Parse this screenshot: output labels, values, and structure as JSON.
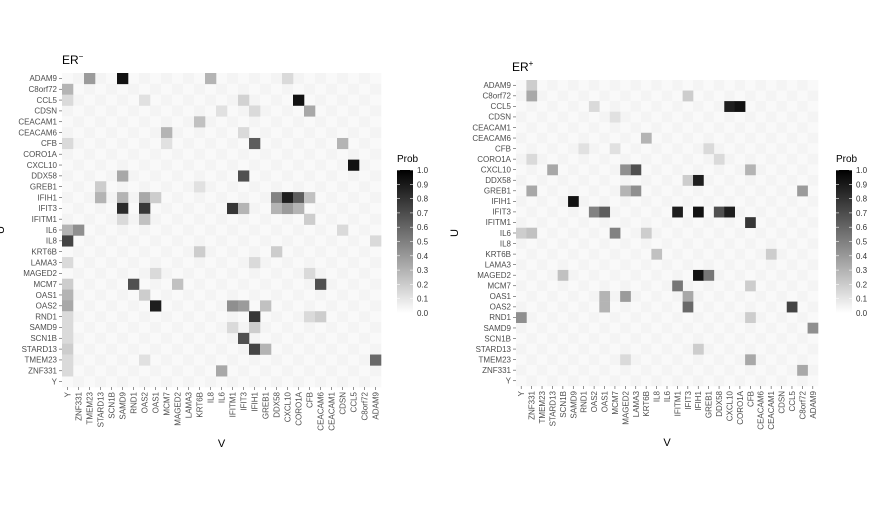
{
  "chart_data": [
    {
      "type": "heatmap",
      "title": "ER−",
      "title_base": "ER",
      "title_sup": "−",
      "xlabel": "V",
      "ylabel": "U",
      "x_categories": [
        "Y",
        "ZNF331",
        "TMEM23",
        "STARD13",
        "SCN1B",
        "SAMD9",
        "RND1",
        "OAS2",
        "OAS1",
        "MCM7",
        "MAGED2",
        "LAMA3",
        "KRT6B",
        "IL8",
        "IL6",
        "IFITM1",
        "IFIT3",
        "IFIH1",
        "GREB1",
        "DDX58",
        "CXCL10",
        "CORO1A",
        "CFB",
        "CEACAM6",
        "CEACAM1",
        "CDSN",
        "CCL5",
        "C8orf72",
        "ADAM9"
      ],
      "y_categories": [
        "ADAM9",
        "C8orf72",
        "CCL5",
        "CDSN",
        "CEACAM1",
        "CEACAM6",
        "CFB",
        "CORO1A",
        "CXCL10",
        "DDX58",
        "GREB1",
        "IFIH1",
        "IFIT3",
        "IFITM1",
        "IL6",
        "IL8",
        "KRT6B",
        "LAMA3",
        "MAGED2",
        "MCM7",
        "OAS1",
        "OAS2",
        "RND1",
        "SAMD9",
        "SCN1B",
        "STARD13",
        "TMEM23",
        "ZNF331",
        "Y"
      ],
      "cells": [
        [
          "ADAM9",
          "TMEM23",
          0.4
        ],
        [
          "ADAM9",
          "SAMD9",
          0.95
        ],
        [
          "ADAM9",
          "IL8",
          0.3
        ],
        [
          "ADAM9",
          "CXCL10",
          0.15
        ],
        [
          "C8orf72",
          "Y",
          0.3
        ],
        [
          "CCL5",
          "Y",
          0.15
        ],
        [
          "CCL5",
          "OAS2",
          0.12
        ],
        [
          "CCL5",
          "IFIT3",
          0.18
        ],
        [
          "CCL5",
          "CORO1A",
          0.95
        ],
        [
          "CDSN",
          "IL6",
          0.12
        ],
        [
          "CDSN",
          "IFIH1",
          0.15
        ],
        [
          "CDSN",
          "CFB",
          0.35
        ],
        [
          "CEACAM1",
          "KRT6B",
          0.25
        ],
        [
          "CEACAM6",
          "MCM7",
          0.3
        ],
        [
          "CEACAM6",
          "IFIT3",
          0.15
        ],
        [
          "CFB",
          "Y",
          0.15
        ],
        [
          "CFB",
          "MCM7",
          0.12
        ],
        [
          "CFB",
          "IFIH1",
          0.65
        ],
        [
          "CFB",
          "CDSN",
          0.3
        ],
        [
          "CXCL10",
          "CCL5",
          0.95
        ],
        [
          "DDX58",
          "SAMD9",
          0.35
        ],
        [
          "DDX58",
          "IFIT3",
          0.7
        ],
        [
          "GREB1",
          "STARD13",
          0.2
        ],
        [
          "GREB1",
          "KRT6B",
          0.12
        ],
        [
          "IFIH1",
          "STARD13",
          0.3
        ],
        [
          "IFIH1",
          "SAMD9",
          0.3
        ],
        [
          "IFIH1",
          "OAS2",
          0.35
        ],
        [
          "IFIH1",
          "OAS1",
          0.2
        ],
        [
          "IFIH1",
          "DDX58",
          0.5
        ],
        [
          "IFIH1",
          "CXCL10",
          0.9
        ],
        [
          "IFIH1",
          "CORO1A",
          0.65
        ],
        [
          "IFIH1",
          "CFB",
          0.25
        ],
        [
          "IFIT3",
          "SAMD9",
          0.85
        ],
        [
          "IFIT3",
          "OAS2",
          0.8
        ],
        [
          "IFIT3",
          "IFITM1",
          0.8
        ],
        [
          "IFIT3",
          "IFIT3",
          0.3
        ],
        [
          "IFIT3",
          "DDX58",
          0.3
        ],
        [
          "IFIT3",
          "CXCL10",
          0.4
        ],
        [
          "IFIT3",
          "CORO1A",
          0.3
        ],
        [
          "IFITM1",
          "SAMD9",
          0.15
        ],
        [
          "IFITM1",
          "OAS2",
          0.25
        ],
        [
          "IFITM1",
          "CFB",
          0.2
        ],
        [
          "IL6",
          "Y",
          0.3
        ],
        [
          "IL6",
          "ZNF331",
          0.45
        ],
        [
          "IL6",
          "CDSN",
          0.15
        ],
        [
          "IL8",
          "Y",
          0.75
        ],
        [
          "IL8",
          "ADAM9",
          0.15
        ],
        [
          "KRT6B",
          "KRT6B",
          0.2
        ],
        [
          "KRT6B",
          "DDX58",
          0.2
        ],
        [
          "LAMA3",
          "Y",
          0.15
        ],
        [
          "LAMA3",
          "IFIH1",
          0.15
        ],
        [
          "MAGED2",
          "OAS1",
          0.15
        ],
        [
          "MAGED2",
          "CFB",
          0.15
        ],
        [
          "MCM7",
          "Y",
          0.2
        ],
        [
          "MCM7",
          "RND1",
          0.7
        ],
        [
          "MCM7",
          "MAGED2",
          0.25
        ],
        [
          "MCM7",
          "CEACAM6",
          0.7
        ],
        [
          "OAS1",
          "Y",
          0.3
        ],
        [
          "OAS1",
          "OAS2",
          0.2
        ],
        [
          "OAS2",
          "Y",
          0.35
        ],
        [
          "OAS2",
          "OAS1",
          0.9
        ],
        [
          "OAS2",
          "IFITM1",
          0.45
        ],
        [
          "OAS2",
          "IFIT3",
          0.4
        ],
        [
          "OAS2",
          "GREB1",
          0.25
        ],
        [
          "RND1",
          "Y",
          0.15
        ],
        [
          "RND1",
          "IFIH1",
          0.8
        ],
        [
          "RND1",
          "CFB",
          0.15
        ],
        [
          "RND1",
          "CEACAM6",
          0.2
        ],
        [
          "SAMD9",
          "Y",
          0.15
        ],
        [
          "SAMD9",
          "IFITM1",
          0.15
        ],
        [
          "SAMD9",
          "IFIH1",
          0.2
        ],
        [
          "SCN1B",
          "Y",
          0.15
        ],
        [
          "SCN1B",
          "IFIT3",
          0.7
        ],
        [
          "STARD13",
          "Y",
          0.2
        ],
        [
          "STARD13",
          "IFIH1",
          0.75
        ],
        [
          "STARD13",
          "GREB1",
          0.3
        ],
        [
          "TMEM23",
          "Y",
          0.15
        ],
        [
          "TMEM23",
          "OAS2",
          0.12
        ],
        [
          "TMEM23",
          "ADAM9",
          0.6
        ],
        [
          "ZNF331",
          "Y",
          0.15
        ],
        [
          "ZNF331",
          "IL6",
          0.35
        ]
      ]
    },
    {
      "type": "heatmap",
      "title": "ER+",
      "title_base": "ER",
      "title_sup": "+",
      "xlabel": "V",
      "ylabel": "U",
      "x_categories": [
        "Y",
        "ZNF331",
        "TMEM23",
        "STARD13",
        "SCN1B",
        "SAMD9",
        "RND1",
        "OAS2",
        "OAS1",
        "MCM7",
        "MAGED2",
        "LAMA3",
        "KRT6B",
        "IL8",
        "IL6",
        "IFITM1",
        "IFIT3",
        "IFIH1",
        "GREB1",
        "DDX58",
        "CXCL10",
        "CORO1A",
        "CFB",
        "CEACAM6",
        "CEACAM1",
        "CDSN",
        "CCL5",
        "C8orf72",
        "ADAM9"
      ],
      "y_categories": [
        "ADAM9",
        "C8orf72",
        "CCL5",
        "CDSN",
        "CEACAM1",
        "CEACAM6",
        "CFB",
        "CORO1A",
        "CXCL10",
        "DDX58",
        "GREB1",
        "IFIH1",
        "IFIT3",
        "IFITM1",
        "IL6",
        "IL8",
        "KRT6B",
        "LAMA3",
        "MAGED2",
        "MCM7",
        "OAS1",
        "OAS2",
        "RND1",
        "SAMD9",
        "SCN1B",
        "STARD13",
        "TMEM23",
        "ZNF331",
        "Y"
      ],
      "cells": [
        [
          "ADAM9",
          "ZNF331",
          0.2
        ],
        [
          "C8orf72",
          "ZNF331",
          0.35
        ],
        [
          "C8orf72",
          "IFIT3",
          0.2
        ],
        [
          "CCL5",
          "OAS2",
          0.15
        ],
        [
          "CCL5",
          "CXCL10",
          0.9
        ],
        [
          "CCL5",
          "CORO1A",
          0.95
        ],
        [
          "CDSN",
          "MCM7",
          0.12
        ],
        [
          "CEACAM6",
          "KRT6B",
          0.3
        ],
        [
          "CFB",
          "RND1",
          0.12
        ],
        [
          "CFB",
          "MCM7",
          0.12
        ],
        [
          "CFB",
          "GREB1",
          0.15
        ],
        [
          "CORO1A",
          "ZNF331",
          0.15
        ],
        [
          "CORO1A",
          "DDX58",
          0.15
        ],
        [
          "CXCL10",
          "STARD13",
          0.35
        ],
        [
          "CXCL10",
          "LAMA3",
          0.7
        ],
        [
          "CXCL10",
          "MAGED2",
          0.45
        ],
        [
          "CXCL10",
          "CFB",
          0.3
        ],
        [
          "DDX58",
          "IFIT3",
          0.2
        ],
        [
          "DDX58",
          "IFIH1",
          0.9
        ],
        [
          "GREB1",
          "ZNF331",
          0.35
        ],
        [
          "GREB1",
          "LAMA3",
          0.45
        ],
        [
          "GREB1",
          "MAGED2",
          0.3
        ],
        [
          "GREB1",
          "C8orf72",
          0.4
        ],
        [
          "IFIH1",
          "SAMD9",
          0.95
        ],
        [
          "IFIT3",
          "OAS2",
          0.5
        ],
        [
          "IFIT3",
          "OAS1",
          0.65
        ],
        [
          "IFIT3",
          "IFITM1",
          0.9
        ],
        [
          "IFIT3",
          "IFIH1",
          0.95
        ],
        [
          "IFIT3",
          "DDX58",
          0.7
        ],
        [
          "IFIT3",
          "CXCL10",
          0.9
        ],
        [
          "IFITM1",
          "CFB",
          0.8
        ],
        [
          "IL6",
          "Y",
          0.2
        ],
        [
          "IL6",
          "ZNF331",
          0.25
        ],
        [
          "IL6",
          "MCM7",
          0.5
        ],
        [
          "IL6",
          "KRT6B",
          0.2
        ],
        [
          "KRT6B",
          "IL8",
          0.25
        ],
        [
          "KRT6B",
          "CEACAM1",
          0.2
        ],
        [
          "MAGED2",
          "IFIH1",
          0.95
        ],
        [
          "MAGED2",
          "GREB1",
          0.55
        ],
        [
          "MAGED2",
          "SCN1B",
          0.25
        ],
        [
          "MCM7",
          "IFITM1",
          0.55
        ],
        [
          "MCM7",
          "CFB",
          0.2
        ],
        [
          "OAS1",
          "OAS1",
          0.3
        ],
        [
          "OAS1",
          "MAGED2",
          0.4
        ],
        [
          "OAS1",
          "IFIT3",
          0.35
        ],
        [
          "OAS2",
          "OAS1",
          0.3
        ],
        [
          "OAS2",
          "IFIT3",
          0.6
        ],
        [
          "OAS2",
          "CCL5",
          0.75
        ],
        [
          "RND1",
          "Y",
          0.45
        ],
        [
          "RND1",
          "CFB",
          0.2
        ],
        [
          "SAMD9",
          "ADAM9",
          0.45
        ],
        [
          "STARD13",
          "IFIH1",
          0.2
        ],
        [
          "TMEM23",
          "CFB",
          0.35
        ],
        [
          "TMEM23",
          "MAGED2",
          0.15
        ],
        [
          "ZNF331",
          "C8orf72",
          0.35
        ]
      ]
    }
  ],
  "legend": {
    "title": "Prob",
    "ticks": [
      "1.0",
      "0.9",
      "0.8",
      "0.7",
      "0.6",
      "0.5",
      "0.4",
      "0.3",
      "0.2",
      "0.1",
      "0.0"
    ],
    "range": [
      0,
      1
    ],
    "color_low": "#ffffff",
    "color_high": "#000000"
  }
}
